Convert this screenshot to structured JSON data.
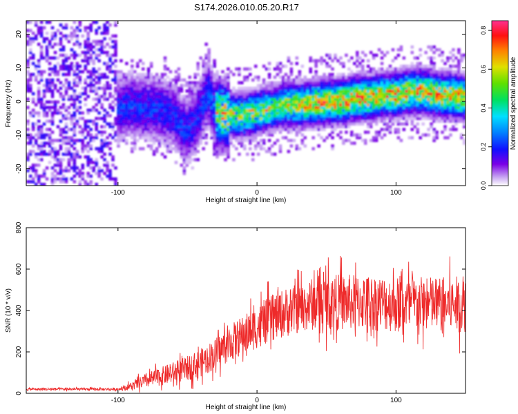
{
  "title": "S174.2026.010.05.20.R17",
  "chart_data": [
    {
      "type": "heatmap",
      "panel": "spectrogram",
      "xlabel": "Height of straight line (km)",
      "ylabel": "Frequency (Hz)",
      "xlim": [
        -166,
        150
      ],
      "ylim": [
        -25,
        24
      ],
      "xticks": [
        -100,
        0,
        100
      ],
      "yticks": [
        -20,
        -10,
        0,
        10,
        20
      ],
      "ridge": {
        "description": "dominant frequency vs height",
        "x": [
          -100,
          -90,
          -80,
          -70,
          -60,
          -55,
          -50,
          -45,
          -40,
          -35,
          -30,
          -25,
          -20,
          -10,
          0,
          10,
          20,
          30,
          40,
          50,
          60,
          70,
          80,
          90,
          100,
          110,
          120,
          130,
          140,
          150
        ],
        "y": [
          -2,
          -1,
          -2,
          -2,
          -4,
          -7,
          -9,
          -6,
          -2,
          3,
          -3,
          -4,
          -4,
          -4,
          -3,
          -2,
          -1,
          -1,
          -0.5,
          0,
          0,
          1,
          1,
          2,
          2,
          3,
          3,
          2,
          2,
          1
        ]
      },
      "colorbar": {
        "label": "Normalized spectral amplitude",
        "range": [
          0.0,
          0.85
        ],
        "ticks": [
          0.0,
          0.2,
          0.4,
          0.6,
          0.8
        ],
        "tick_labels": [
          "0.0",
          "0.2",
          "0.4",
          "0.6",
          "0.8"
        ]
      }
    },
    {
      "type": "line",
      "panel": "snr",
      "xlabel": "Height of straight line (km)",
      "ylabel": "SNR (10 * v/v)",
      "xlim": [
        -166,
        150
      ],
      "ylim": [
        0,
        800
      ],
      "xticks": [
        -100,
        0,
        100
      ],
      "yticks": [
        0,
        200,
        400,
        600,
        800
      ],
      "color": "#ee2a2a",
      "envelope": {
        "description": "approximate mean SNR level and noise spread vs height",
        "x": [
          -166,
          -120,
          -100,
          -90,
          -80,
          -70,
          -60,
          -50,
          -40,
          -30,
          -20,
          -10,
          0,
          10,
          20,
          30,
          40,
          50,
          60,
          80,
          100,
          120,
          150
        ],
        "mean": [
          20,
          20,
          20,
          35,
          60,
          80,
          100,
          120,
          150,
          190,
          240,
          280,
          320,
          360,
          390,
          410,
          430,
          440,
          440,
          440,
          430,
          430,
          430
        ],
        "spread": [
          8,
          8,
          8,
          25,
          45,
          55,
          65,
          75,
          85,
          95,
          110,
          120,
          130,
          140,
          150,
          150,
          160,
          170,
          170,
          170,
          170,
          170,
          170
        ]
      }
    }
  ]
}
